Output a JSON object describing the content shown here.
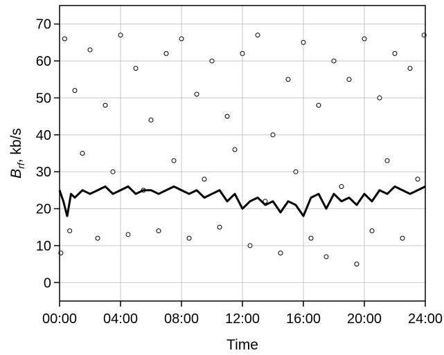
{
  "chart_data": {
    "type": "scatter",
    "title": "",
    "xlabel": "Time",
    "ylabel": {
      "main": "B",
      "subscript": "rf",
      "unit": ", kb/s"
    },
    "xlim": [
      "00:00",
      "24:00"
    ],
    "ylim": [
      -5,
      75
    ],
    "xticks": [
      "00:00",
      "04:00",
      "08:00",
      "12:00",
      "16:00",
      "20:00",
      "24:00"
    ],
    "yticks": [
      0,
      10,
      20,
      30,
      40,
      50,
      60,
      70
    ],
    "grid": true,
    "legend": "none",
    "series": [
      {
        "type": "scatter",
        "marker": "open-circle",
        "description_range": "y values scattered between about 5 and 68 kb/s throughout the day, densest between 10 and 40",
        "x": [
          "00:05",
          "00:20",
          "00:40",
          "01:00",
          "01:30",
          "02:00",
          "02:30",
          "03:00",
          "03:30",
          "04:00",
          "04:30",
          "05:00",
          "05:30",
          "06:00",
          "06:30",
          "07:00",
          "07:30",
          "08:00",
          "08:30",
          "09:00",
          "09:30",
          "10:00",
          "10:30",
          "11:00",
          "11:30",
          "12:00",
          "12:30",
          "13:00",
          "13:30",
          "14:00",
          "14:30",
          "15:00",
          "15:30",
          "16:00",
          "16:30",
          "17:00",
          "17:30",
          "18:00",
          "18:30",
          "19:00",
          "19:30",
          "20:00",
          "20:30",
          "21:00",
          "21:30",
          "22:00",
          "22:30",
          "23:00",
          "23:30",
          "23:55"
        ],
        "y": [
          8,
          66,
          14,
          52,
          35,
          63,
          12,
          48,
          30,
          67,
          13,
          58,
          25,
          44,
          14,
          62,
          33,
          66,
          12,
          51,
          28,
          60,
          15,
          45,
          36,
          62,
          10,
          67,
          22,
          40,
          8,
          55,
          30,
          65,
          12,
          48,
          7,
          60,
          26,
          55,
          5,
          66,
          14,
          50,
          33,
          62,
          12,
          58,
          28,
          67
        ]
      },
      {
        "type": "line",
        "color": "#000000",
        "x": [
          "00:00",
          "00:15",
          "00:30",
          "00:45",
          "01:00",
          "01:30",
          "02:00",
          "02:30",
          "03:00",
          "03:30",
          "04:00",
          "04:30",
          "05:00",
          "05:30",
          "06:00",
          "06:30",
          "07:00",
          "07:30",
          "08:00",
          "08:30",
          "09:00",
          "09:30",
          "10:00",
          "10:30",
          "11:00",
          "11:30",
          "12:00",
          "12:30",
          "13:00",
          "13:30",
          "14:00",
          "14:30",
          "15:00",
          "15:30",
          "16:00",
          "16:30",
          "17:00",
          "17:30",
          "18:00",
          "18:30",
          "19:00",
          "19:30",
          "20:00",
          "20:30",
          "21:00",
          "21:30",
          "22:00",
          "22:30",
          "23:00",
          "23:30",
          "24:00"
        ],
        "y": [
          25,
          22,
          18,
          24,
          23,
          25,
          24,
          25,
          26,
          24,
          25,
          26,
          24,
          25,
          25,
          24,
          25,
          26,
          25,
          24,
          25,
          23,
          24,
          25,
          22,
          24,
          20,
          22,
          23,
          21,
          22,
          19,
          22,
          21,
          18,
          23,
          24,
          20,
          24,
          22,
          23,
          21,
          24,
          22,
          25,
          24,
          26,
          25,
          24,
          25,
          26
        ]
      }
    ]
  }
}
